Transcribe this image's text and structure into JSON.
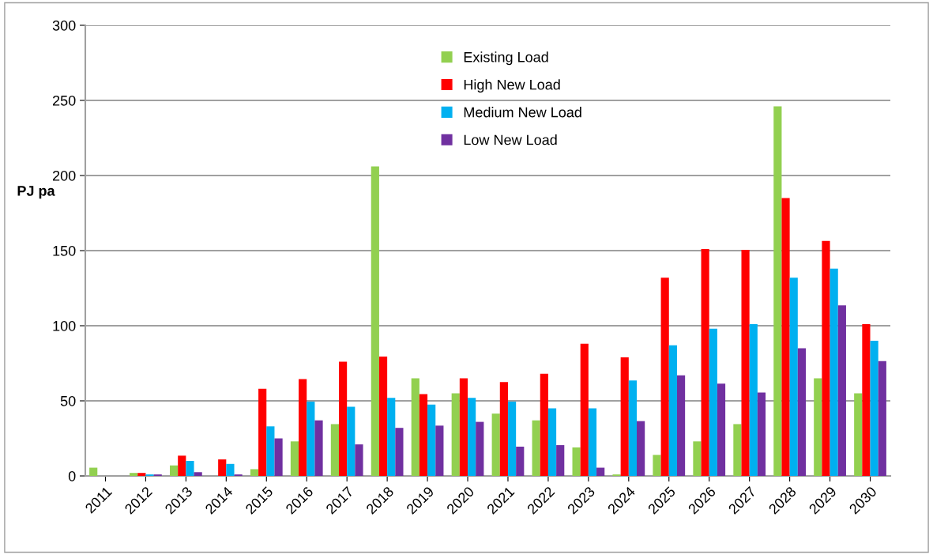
{
  "chart_data": {
    "type": "bar",
    "ylabel": "PJ pa",
    "categories": [
      "2011",
      "2012",
      "2013",
      "2014",
      "2015",
      "2016",
      "2017",
      "2018",
      "2019",
      "2020",
      "2021",
      "2022",
      "2023",
      "2024",
      "2025",
      "2026",
      "2027",
      "2028",
      "2029",
      "2030"
    ],
    "series": [
      {
        "name": "Existing Load",
        "color": "#92d050",
        "values": [
          5.5,
          2,
          7,
          0,
          4.5,
          23,
          34.5,
          206,
          65,
          55,
          41.5,
          37,
          19,
          1,
          14,
          23,
          34.5,
          246,
          65,
          55
        ]
      },
      {
        "name": "High New Load",
        "color": "#ff0000",
        "values": [
          0,
          2,
          13.5,
          11,
          58,
          64.5,
          76,
          79.5,
          54.5,
          65,
          62.5,
          68,
          88,
          79,
          132,
          151,
          150.5,
          185,
          156.5,
          101
        ]
      },
      {
        "name": "Medium New Load",
        "color": "#00b0f0",
        "values": [
          0,
          1,
          10,
          8,
          33,
          49.5,
          46,
          52,
          47.5,
          52,
          49.5,
          45,
          45,
          63.5,
          87,
          98,
          101,
          132,
          138,
          90
        ]
      },
      {
        "name": "Low New Load",
        "color": "#7030a0",
        "values": [
          0,
          1,
          2.5,
          1,
          25,
          37,
          21,
          32,
          33.5,
          36,
          19.5,
          20.5,
          5.5,
          36.5,
          67,
          61.5,
          55.5,
          85,
          113.5,
          76.5
        ]
      }
    ],
    "ylim": [
      0,
      300
    ],
    "yticks": [
      0,
      50,
      100,
      150,
      200,
      250,
      300
    ],
    "grid": "y",
    "legend": "top"
  }
}
